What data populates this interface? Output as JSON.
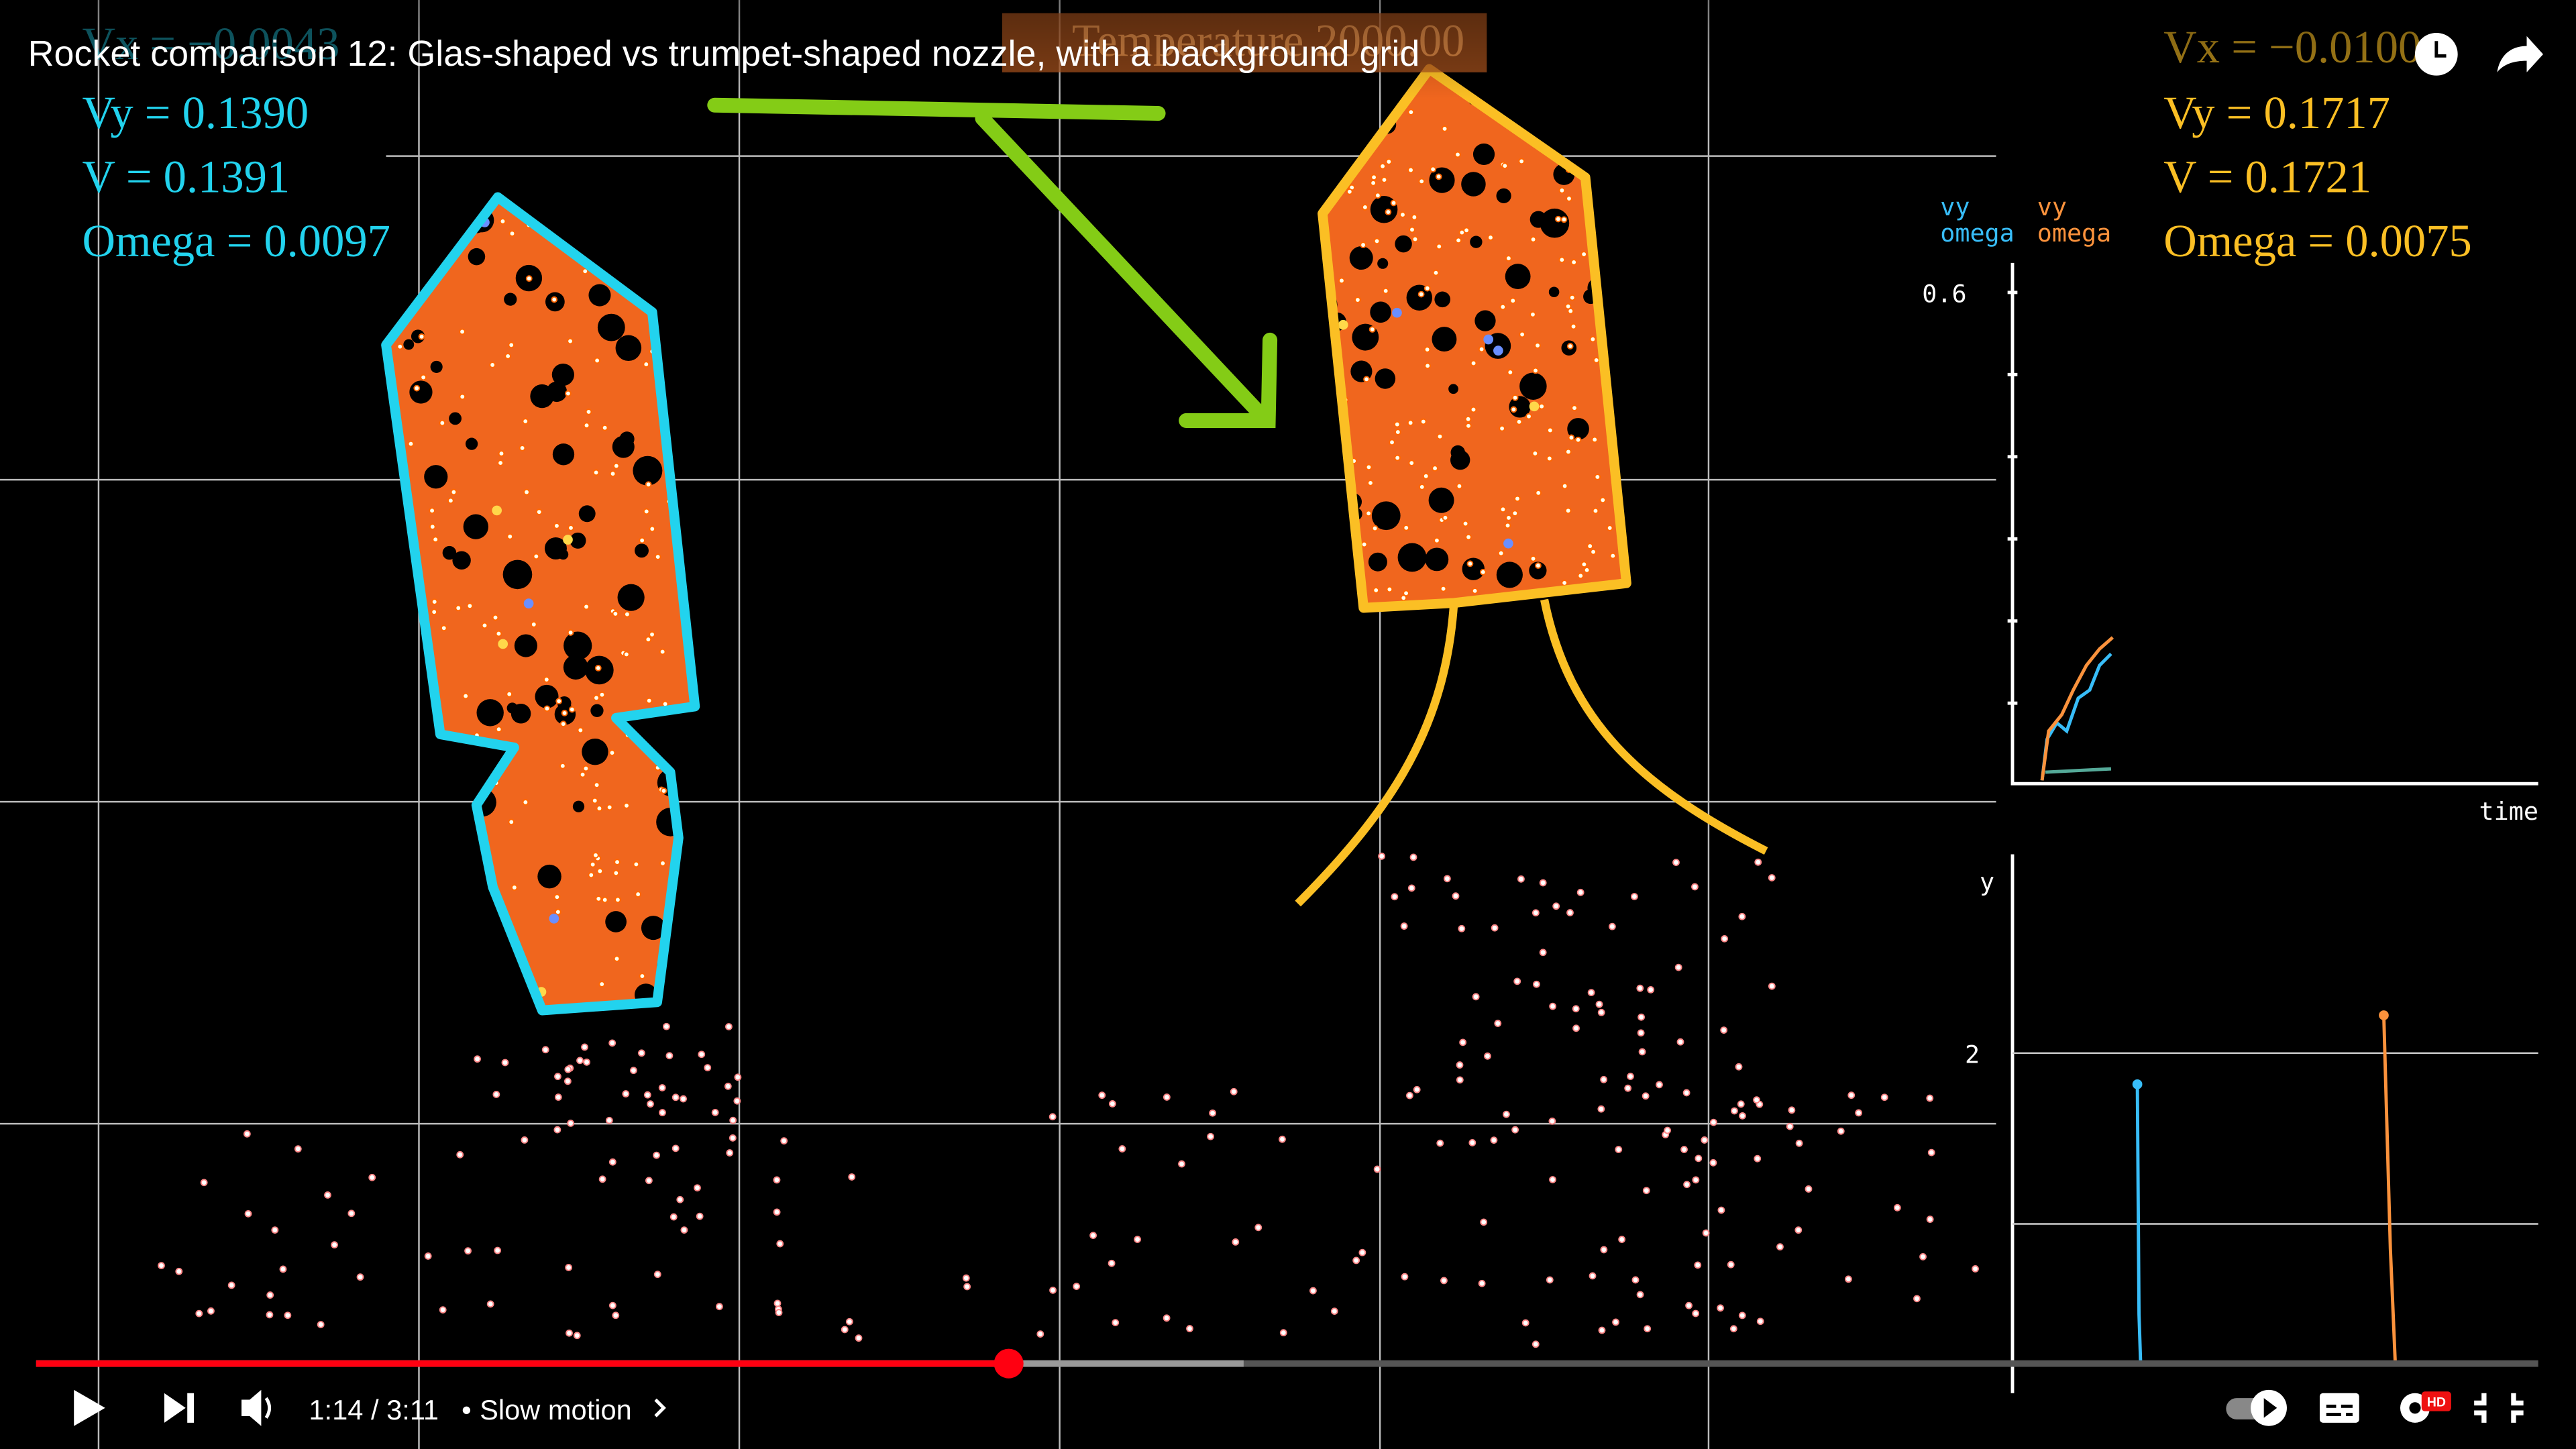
{
  "video": {
    "title": "Rocket comparison 12: Glas-shaped vs trumpet-shaped nozzle, with a background grid"
  },
  "left_readout": {
    "vx": "Vx = −0.0043",
    "vy": "Vy = 0.1390",
    "v": "V = 0.1391",
    "omega": "Omega = 0.0097"
  },
  "right_readout": {
    "vx": "Vx = −0.0100",
    "vy": "Vy = 0.1717",
    "v": "V = 0.1721",
    "omega": "Omega = 0.0075"
  },
  "temperature": "Temperature 2000.00",
  "graph": {
    "legend": [
      {
        "vy": "vy",
        "omega": "omega"
      },
      {
        "vy": "vy",
        "omega": "omega"
      }
    ],
    "top_tick": "0.6",
    "x_label": "time",
    "y_label": "y",
    "bottom_tick": "2"
  },
  "player": {
    "time": "1:14 / 3:11",
    "chapter": "Slow motion"
  }
}
